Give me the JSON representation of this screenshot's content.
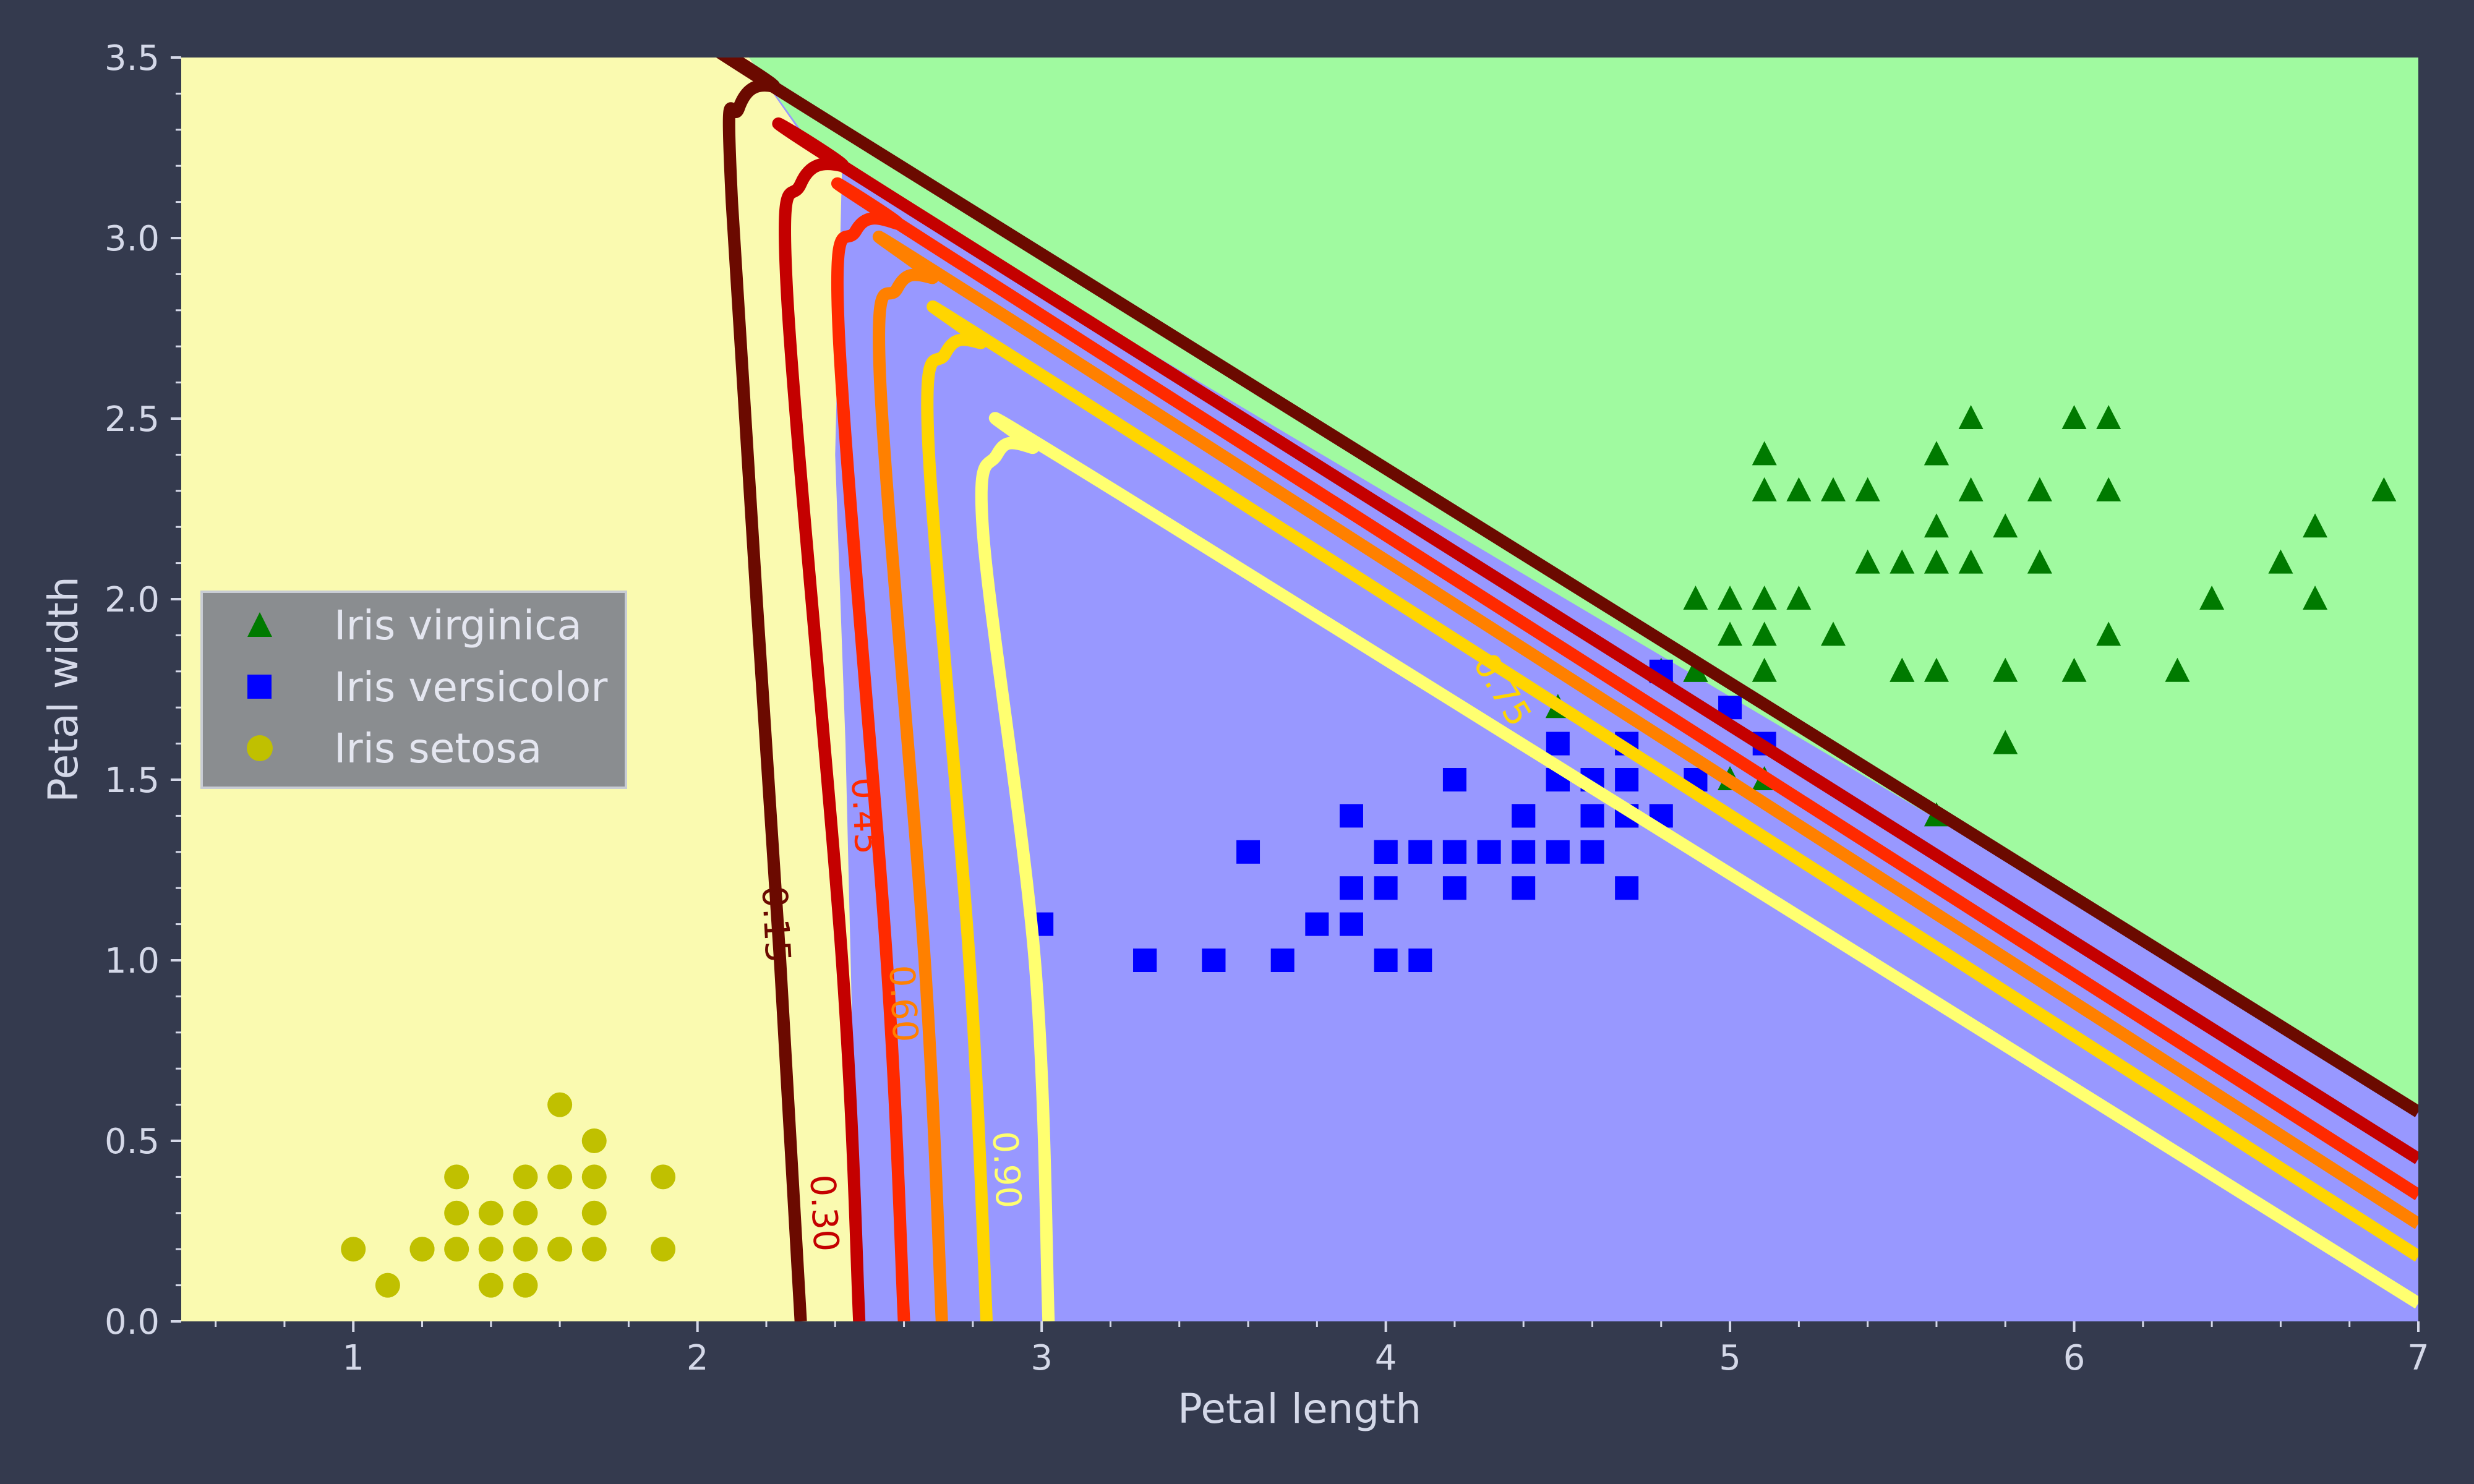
{
  "colors": {
    "background": "#343a4e",
    "region_setosa": "#fafab0",
    "region_versicolor": "#9898ff",
    "region_virginica": "#a0faa0",
    "tick_text": "#d4d8e8",
    "label_text": "#d4d8e8",
    "legend_bg": "#8a8d90",
    "legend_border": "#c8ccd4"
  },
  "chart_data": {
    "type": "scatter",
    "xlabel": "Petal length",
    "ylabel": "Petal width",
    "xlim": [
      0.5,
      7.0
    ],
    "ylim": [
      0.0,
      3.5
    ],
    "xticks": [
      1,
      2,
      3,
      4,
      5,
      6,
      7
    ],
    "xtick_labels": [
      "1",
      "2",
      "3",
      "4",
      "5",
      "6",
      "7"
    ],
    "yticks": [
      0.0,
      0.5,
      1.0,
      1.5,
      2.0,
      2.5,
      3.0,
      3.5
    ],
    "ytick_labels": [
      "0.0",
      "0.5",
      "1.0",
      "1.5",
      "2.0",
      "2.5",
      "3.0",
      "3.5"
    ],
    "legend_position": "center-left",
    "regions": [
      {
        "class": "Iris setosa",
        "color": "#fafab0",
        "boundary": [
          [
            2.15,
            3.5
          ],
          [
            2.22,
            3.4
          ],
          [
            2.33,
            3.25
          ],
          [
            2.42,
            3.2
          ],
          [
            2.4,
            2.4
          ],
          [
            2.43,
            1.6
          ],
          [
            2.47,
            0.0
          ]
        ]
      },
      {
        "class": "Iris versicolor",
        "color": "#9898ff"
      },
      {
        "class": "Iris virginica",
        "color": "#a0faa0",
        "boundary": [
          [
            2.15,
            3.5
          ],
          [
            2.3,
            3.3
          ],
          [
            2.4,
            3.2
          ],
          [
            7.0,
            0.6
          ]
        ]
      }
    ],
    "series": [
      {
        "name": "Iris virginica",
        "marker": "triangle",
        "color": "#007a00",
        "points": [
          [
            6.0,
            2.5
          ],
          [
            5.1,
            1.9
          ],
          [
            5.9,
            2.1
          ],
          [
            5.6,
            1.8
          ],
          [
            5.8,
            2.2
          ],
          [
            6.6,
            2.1
          ],
          [
            4.5,
            1.7
          ],
          [
            6.3,
            1.8
          ],
          [
            5.8,
            1.8
          ],
          [
            6.1,
            2.5
          ],
          [
            5.1,
            2.0
          ],
          [
            5.3,
            1.9
          ],
          [
            5.5,
            2.1
          ],
          [
            5.0,
            2.0
          ],
          [
            5.1,
            2.4
          ],
          [
            5.3,
            2.3
          ],
          [
            5.5,
            1.8
          ],
          [
            6.7,
            2.2
          ],
          [
            6.9,
            2.3
          ],
          [
            5.0,
            1.5
          ],
          [
            5.7,
            2.3
          ],
          [
            4.9,
            2.0
          ],
          [
            6.7,
            2.0
          ],
          [
            4.9,
            1.8
          ],
          [
            5.7,
            2.1
          ],
          [
            6.0,
            1.8
          ],
          [
            4.8,
            1.8
          ],
          [
            4.9,
            1.8
          ],
          [
            5.6,
            2.1
          ],
          [
            5.8,
            1.6
          ],
          [
            6.1,
            1.9
          ],
          [
            6.4,
            2.0
          ],
          [
            5.6,
            2.2
          ],
          [
            5.1,
            1.5
          ],
          [
            5.6,
            1.4
          ],
          [
            6.1,
            2.3
          ],
          [
            5.6,
            2.4
          ],
          [
            5.5,
            1.8
          ],
          [
            4.8,
            1.8
          ],
          [
            5.4,
            2.1
          ],
          [
            5.6,
            2.4
          ],
          [
            5.1,
            2.3
          ],
          [
            5.9,
            2.3
          ],
          [
            5.7,
            2.5
          ],
          [
            5.2,
            2.3
          ],
          [
            5.0,
            1.9
          ],
          [
            5.2,
            2.0
          ],
          [
            5.4,
            2.3
          ],
          [
            5.1,
            1.8
          ]
        ]
      },
      {
        "name": "Iris versicolor",
        "marker": "square",
        "color": "#0000ff",
        "points": [
          [
            4.7,
            1.4
          ],
          [
            4.5,
            1.5
          ],
          [
            4.9,
            1.5
          ],
          [
            4.0,
            1.3
          ],
          [
            4.6,
            1.5
          ],
          [
            4.5,
            1.3
          ],
          [
            4.7,
            1.6
          ],
          [
            3.3,
            1.0
          ],
          [
            4.6,
            1.3
          ],
          [
            3.9,
            1.4
          ],
          [
            3.5,
            1.0
          ],
          [
            4.2,
            1.5
          ],
          [
            4.0,
            1.0
          ],
          [
            4.7,
            1.4
          ],
          [
            3.6,
            1.3
          ],
          [
            4.4,
            1.4
          ],
          [
            4.5,
            1.5
          ],
          [
            4.1,
            1.0
          ],
          [
            4.5,
            1.5
          ],
          [
            3.9,
            1.1
          ],
          [
            4.8,
            1.8
          ],
          [
            4.0,
            1.3
          ],
          [
            4.9,
            1.5
          ],
          [
            4.7,
            1.2
          ],
          [
            4.3,
            1.3
          ],
          [
            4.4,
            1.4
          ],
          [
            4.8,
            1.4
          ],
          [
            5.0,
            1.7
          ],
          [
            4.5,
            1.5
          ],
          [
            3.5,
            1.0
          ],
          [
            3.8,
            1.1
          ],
          [
            3.7,
            1.0
          ],
          [
            3.9,
            1.2
          ],
          [
            5.1,
            1.6
          ],
          [
            4.5,
            1.5
          ],
          [
            4.5,
            1.6
          ],
          [
            4.7,
            1.5
          ],
          [
            4.4,
            1.3
          ],
          [
            4.1,
            1.3
          ],
          [
            4.0,
            1.3
          ],
          [
            4.4,
            1.2
          ],
          [
            4.6,
            1.4
          ],
          [
            4.0,
            1.2
          ],
          [
            3.3,
            1.0
          ],
          [
            4.2,
            1.3
          ],
          [
            4.2,
            1.2
          ],
          [
            4.2,
            1.3
          ],
          [
            4.3,
            1.3
          ],
          [
            3.0,
            1.1
          ],
          [
            4.1,
            1.3
          ]
        ]
      },
      {
        "name": "Iris setosa",
        "marker": "circle",
        "color": "#c0c000",
        "points": [
          [
            1.4,
            0.2
          ],
          [
            1.3,
            0.2
          ],
          [
            1.5,
            0.2
          ],
          [
            1.7,
            0.4
          ],
          [
            1.4,
            0.3
          ],
          [
            1.5,
            0.1
          ],
          [
            1.1,
            0.1
          ],
          [
            1.2,
            0.2
          ],
          [
            1.3,
            0.4
          ],
          [
            1.5,
            0.4
          ],
          [
            1.7,
            0.3
          ],
          [
            1.0,
            0.2
          ],
          [
            1.7,
            0.5
          ],
          [
            1.9,
            0.2
          ],
          [
            1.6,
            0.2
          ],
          [
            1.6,
            0.4
          ],
          [
            1.4,
            0.1
          ],
          [
            1.5,
            0.3
          ],
          [
            1.3,
            0.3
          ],
          [
            1.6,
            0.6
          ],
          [
            1.9,
            0.4
          ],
          [
            1.6,
            0.2
          ],
          [
            1.7,
            0.2
          ],
          [
            1.2,
            0.2
          ],
          [
            1.5,
            0.2
          ],
          [
            1.4,
            0.2
          ]
        ]
      }
    ],
    "contours": [
      {
        "label": "0.15",
        "color": "#6b0a00",
        "points": [
          [
            2.3,
            0.0
          ],
          [
            2.24,
            1.0
          ],
          [
            2.1,
            3.1
          ],
          [
            2.12,
            3.36
          ],
          [
            2.22,
            3.42
          ],
          [
            2.42,
            3.3
          ],
          [
            7.0,
            0.58
          ]
        ],
        "label_at": [
          2.23,
          1.1
        ]
      },
      {
        "label": "0.30",
        "color": "#c40000",
        "points": [
          [
            2.47,
            0.0
          ],
          [
            2.42,
            1.0
          ],
          [
            2.26,
            2.85
          ],
          [
            2.3,
            3.15
          ],
          [
            2.42,
            3.2
          ],
          [
            2.62,
            3.08
          ],
          [
            7.0,
            0.45
          ]
        ],
        "label_at": [
          2.37,
          0.3
        ]
      },
      {
        "label": "0.45",
        "color": "#ff2a00",
        "points": [
          [
            2.6,
            0.0
          ],
          [
            2.55,
            1.0
          ],
          [
            2.41,
            2.75
          ],
          [
            2.46,
            3.02
          ],
          [
            2.58,
            3.04
          ],
          [
            2.78,
            2.92
          ],
          [
            7.0,
            0.35
          ]
        ],
        "label_at": [
          2.49,
          1.4
        ]
      },
      {
        "label": "0.60",
        "color": "#ff8000",
        "points": [
          [
            2.71,
            0.0
          ],
          [
            2.66,
            1.0
          ],
          [
            2.53,
            2.62
          ],
          [
            2.58,
            2.86
          ],
          [
            2.68,
            2.89
          ],
          [
            2.9,
            2.78
          ],
          [
            7.0,
            0.27
          ]
        ],
        "label_at": [
          2.6,
          0.88
        ]
      },
      {
        "label": "0.75",
        "color": "#ffd500",
        "points": [
          [
            2.84,
            0.0
          ],
          [
            2.79,
            1.0
          ],
          [
            2.67,
            2.45
          ],
          [
            2.72,
            2.68
          ],
          [
            2.82,
            2.71
          ],
          [
            3.05,
            2.59
          ],
          [
            7.0,
            0.18
          ]
        ],
        "label_at": [
          4.34,
          1.75
        ]
      },
      {
        "label": "0.90",
        "color": "#ffff70",
        "points": [
          [
            3.02,
            0.0
          ],
          [
            2.98,
            1.0
          ],
          [
            2.83,
            2.18
          ],
          [
            2.87,
            2.4
          ],
          [
            2.97,
            2.42
          ],
          [
            3.23,
            2.29
          ],
          [
            7.0,
            0.05
          ]
        ],
        "label_at": [
          2.9,
          0.42
        ]
      }
    ]
  }
}
